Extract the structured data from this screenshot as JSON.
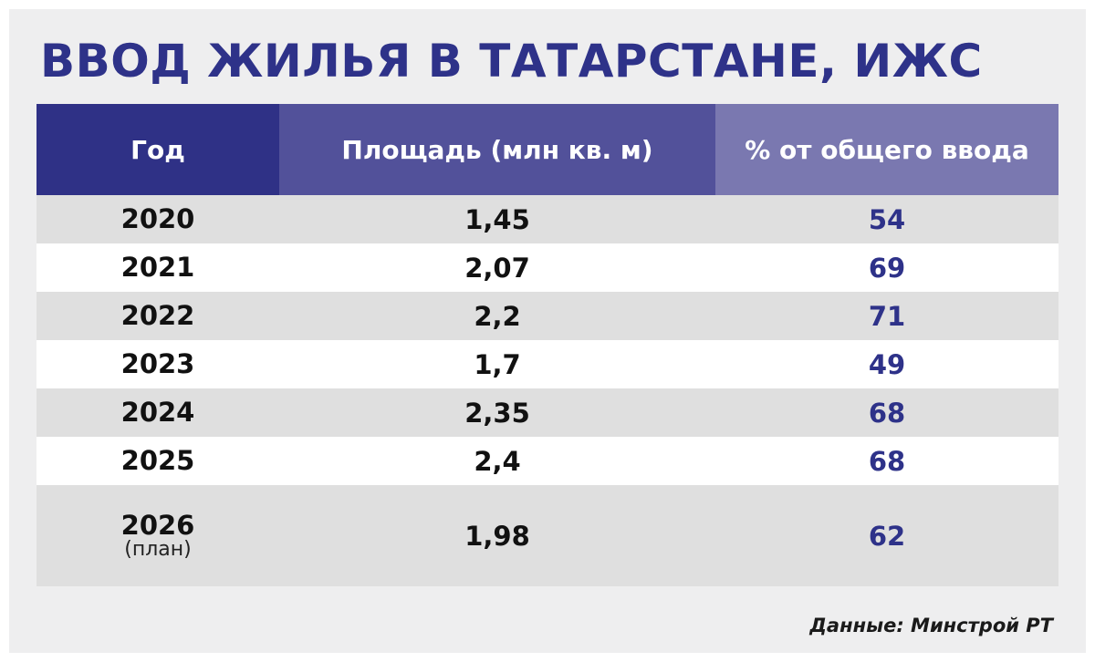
{
  "title": "ВВОД ЖИЛЬЯ В ТАТАРСТАНЕ, ИЖС",
  "source": "Данные: Минстрой РТ",
  "colors": {
    "title": "#2e3289",
    "header_col1": "#2f3186",
    "header_col2": "#52519a",
    "header_col3": "#7a78b0",
    "percent_text": "#2e3289",
    "row_shade": "#dfdfdf"
  },
  "chart_data": {
    "type": "table",
    "columns": [
      "Год",
      "Площадь (млн кв. м)",
      "% от общего ввода"
    ],
    "rows": [
      {
        "year": "2020",
        "note": "",
        "area": "1,45",
        "percent": "54"
      },
      {
        "year": "2021",
        "note": "",
        "area": "2,07",
        "percent": "69"
      },
      {
        "year": "2022",
        "note": "",
        "area": "2,2",
        "percent": "71"
      },
      {
        "year": "2023",
        "note": "",
        "area": "1,7",
        "percent": "49"
      },
      {
        "year": "2024",
        "note": "",
        "area": "2,35",
        "percent": "68"
      },
      {
        "year": "2025",
        "note": "",
        "area": "2,4",
        "percent": "68"
      },
      {
        "year": "2026",
        "note": "(план)",
        "area": "1,98",
        "percent": "62"
      }
    ]
  }
}
